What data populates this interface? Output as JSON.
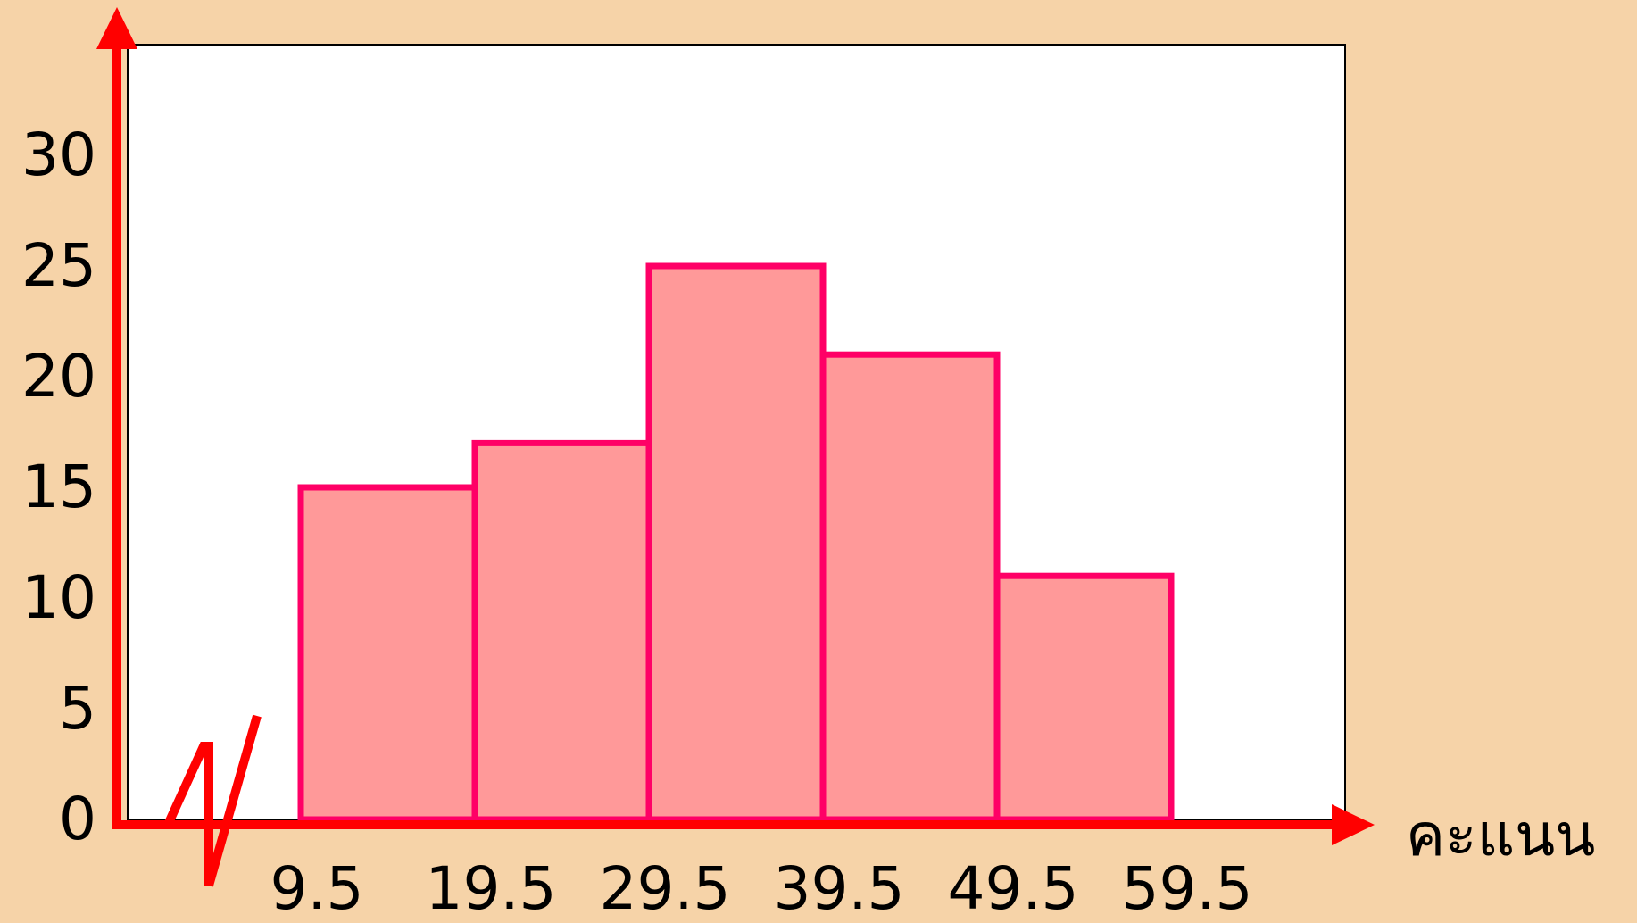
{
  "chart_data": {
    "type": "histogram",
    "x_label": "คะแนน",
    "bins": [
      9.5,
      19.5,
      29.5,
      39.5,
      49.5,
      59.5
    ],
    "values": [
      15,
      17,
      25,
      21,
      11
    ],
    "color": "#ff9999",
    "edge_color": "#ff0066",
    "xlim": [
      9.5,
      69.5
    ],
    "xticks": [
      9.5,
      19.5,
      29.5,
      39.5,
      49.5,
      59.5
    ],
    "ylim": [
      0,
      35
    ],
    "yticks": [
      0,
      5,
      10,
      15,
      20,
      25,
      30
    ],
    "grid": true
  }
}
